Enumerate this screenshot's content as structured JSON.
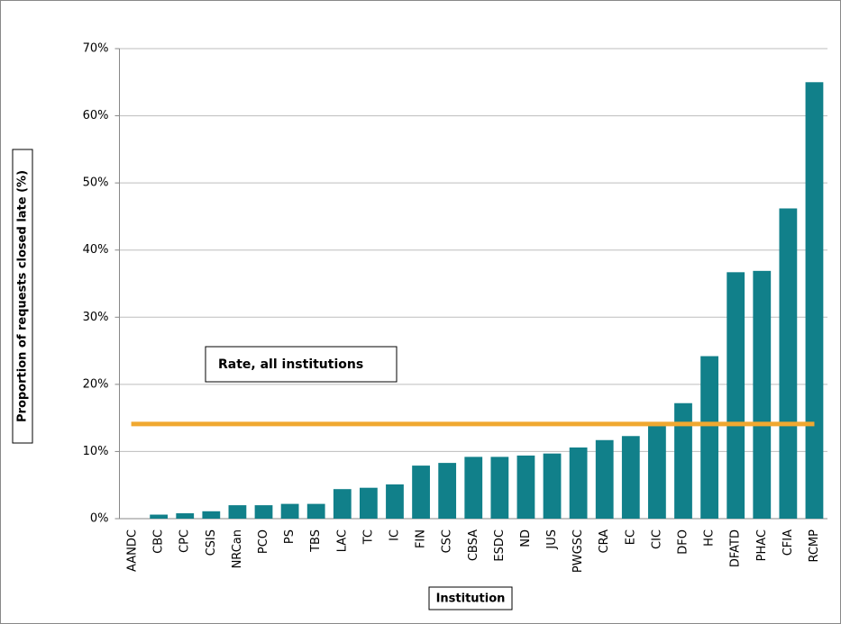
{
  "chart_data": {
    "type": "bar",
    "x_label": "Institution",
    "y_label": "Proportion of requests closed late (%)",
    "categories": [
      "AANDC",
      "CBC",
      "CPC",
      "CSIS",
      "NRCan",
      "PCO",
      "PS",
      "TBS",
      "LAC",
      "TC",
      "IC",
      "FIN",
      "CSC",
      "CBSA",
      "ESDC",
      "ND",
      "JUS",
      "PWGSC",
      "CRA",
      "EC",
      "CIC",
      "DFO",
      "HC",
      "DFATD",
      "PHAC",
      "CFIA",
      "RCMP"
    ],
    "values": [
      0,
      0.6,
      0.8,
      1.1,
      2.0,
      2.0,
      2.2,
      2.2,
      4.4,
      4.6,
      5.1,
      7.9,
      8.3,
      9.2,
      9.2,
      9.4,
      9.7,
      10.6,
      11.7,
      12.3,
      13.8,
      17.2,
      24.2,
      36.7,
      36.9,
      46.2,
      65.0
    ],
    "color": "#11808a",
    "reference_line": {
      "label": "Rate, all institutions",
      "value": 14.1,
      "color": "#f0a830"
    },
    "ylim": [
      0,
      70
    ],
    "yticks": [
      {
        "value": 0,
        "label": "0%"
      },
      {
        "value": 10,
        "label": "10%"
      },
      {
        "value": 20,
        "label": "20%"
      },
      {
        "value": 30,
        "label": "30%"
      },
      {
        "value": 40,
        "label": "40%"
      },
      {
        "value": 50,
        "label": "50%"
      },
      {
        "value": 60,
        "label": "60%"
      },
      {
        "value": 70,
        "label": "70%"
      }
    ],
    "grid": true
  }
}
